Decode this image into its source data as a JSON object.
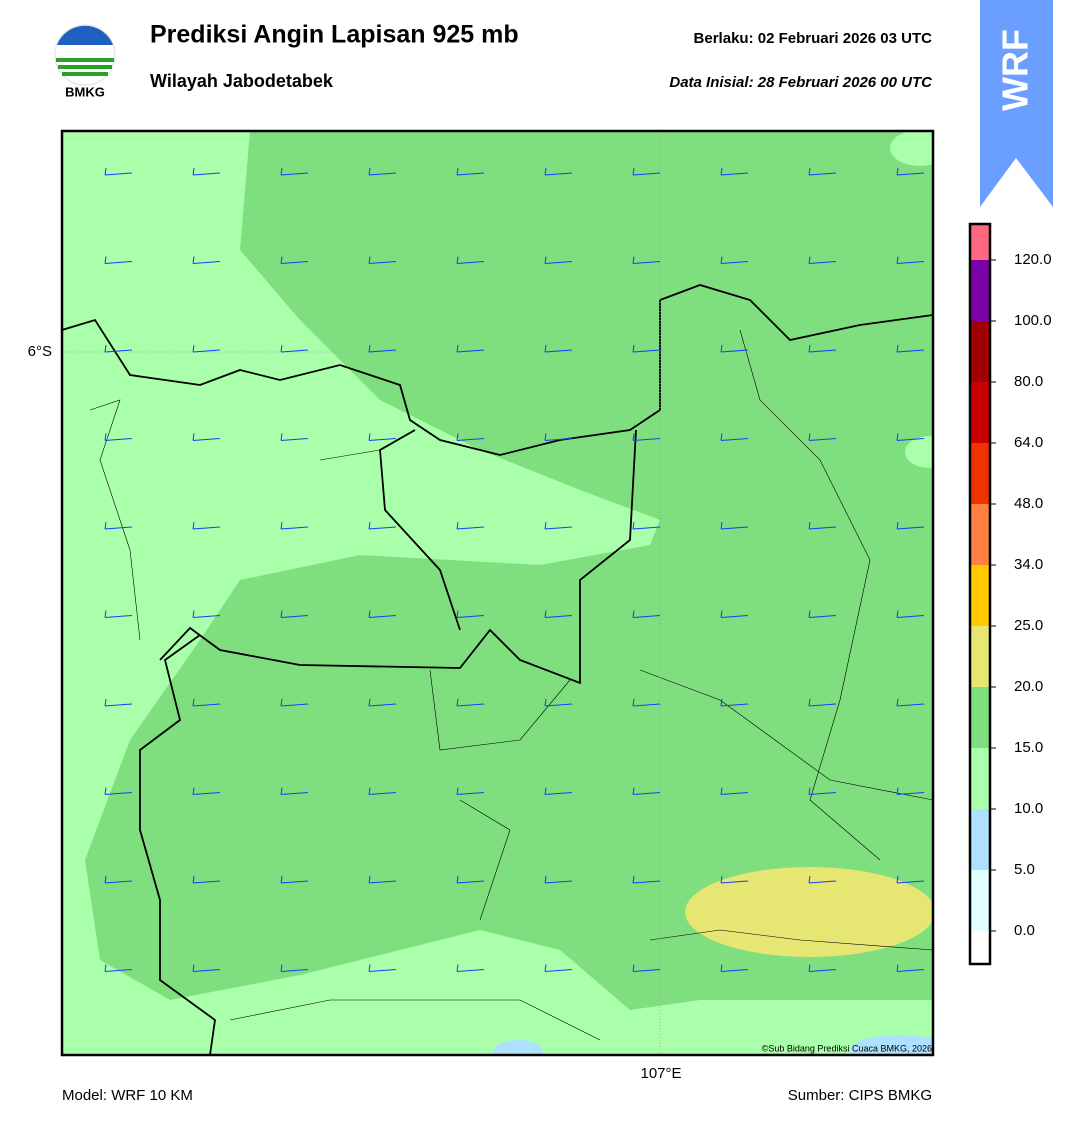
{
  "header": {
    "title": "Prediksi Angin Lapisan 925 mb",
    "subtitle": "Wilayah Jabodetabek",
    "valid_label": "Berlaku:  02 Februari 2026 03 UTC",
    "init_label": "Data Inisial:  28 Februari 2026 00 UTC",
    "logo_text": "BMKG",
    "ribbon": "WRF"
  },
  "map": {
    "lat_label": "6°S",
    "lon_label": "107°E",
    "credit": "©Sub Bidang Prediksi Cuaca BMKG, 2026"
  },
  "colorbar": {
    "labels": [
      "0.0",
      "5.0",
      "10.0",
      "15.0",
      "20.0",
      "25.0",
      "34.0",
      "48.0",
      "64.0",
      "80.0",
      "100.0",
      "120.0"
    ],
    "colors": [
      "#ffffff",
      "#e0ffff",
      "#aee0ff",
      "#aaffaa",
      "#7fdf7f",
      "#e6e673",
      "#ffc800",
      "#ff8040",
      "#ee3300",
      "#c80000",
      "#a00000",
      "#7b00a8",
      "#ff6680"
    ]
  },
  "footer": {
    "model": "Model: WRF 10 KM",
    "source": "Sumber: CIPS BMKG"
  }
}
